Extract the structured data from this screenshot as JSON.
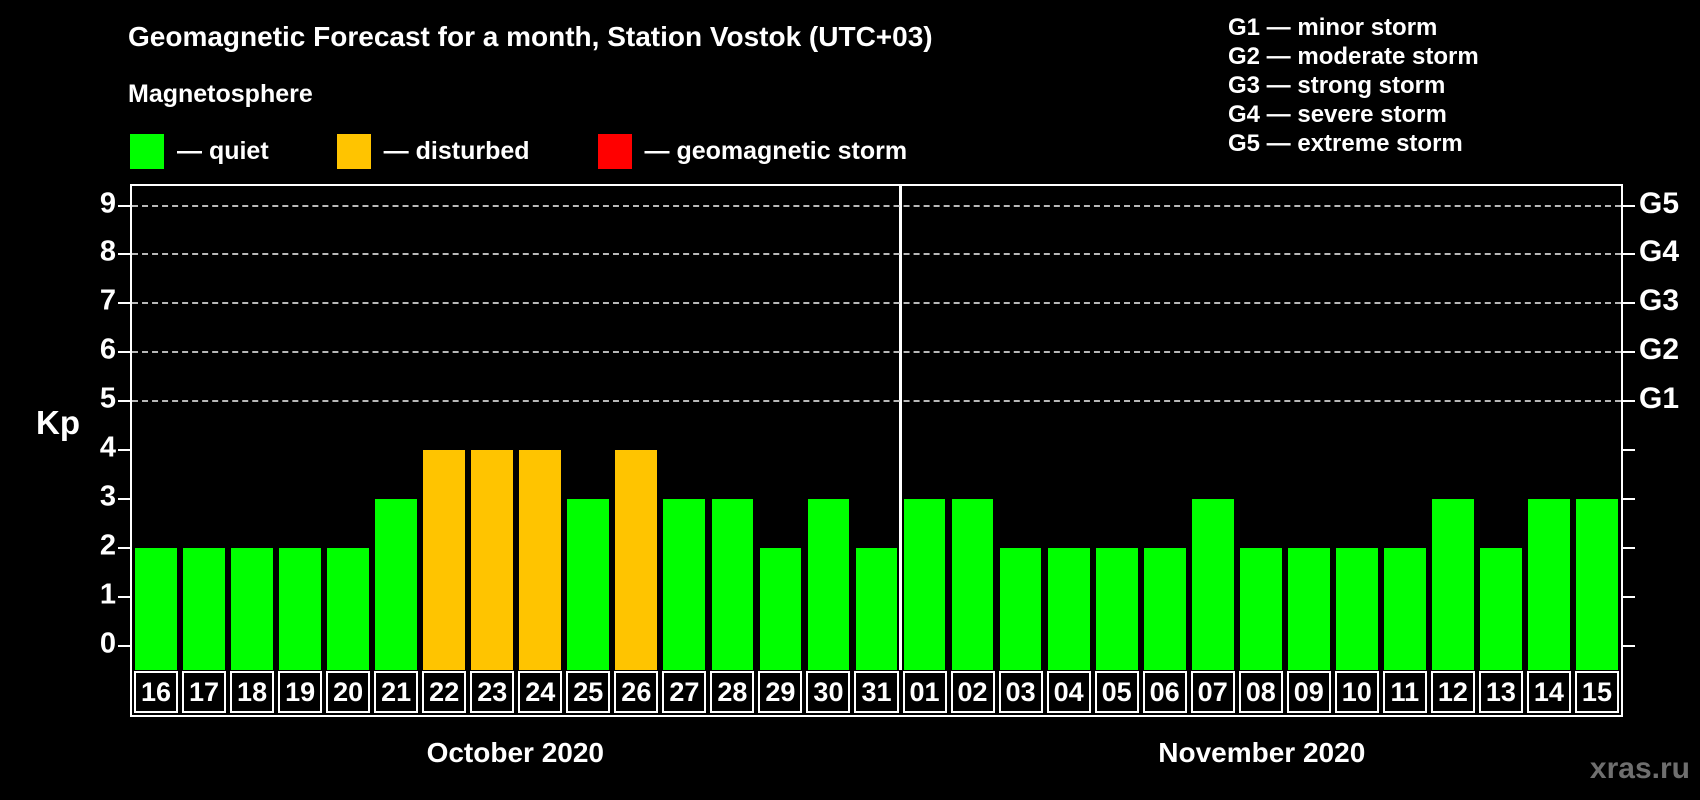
{
  "header": {
    "title": "Geomagnetic Forecast for a month, Station Vostok (UTC+03)",
    "subtitle": "Magnetosphere"
  },
  "legend": {
    "items": [
      {
        "key": "quiet",
        "label": "— quiet"
      },
      {
        "key": "disturbed",
        "label": "— disturbed"
      },
      {
        "key": "storm",
        "label": "— geomagnetic storm"
      }
    ]
  },
  "g_scale_legend": {
    "items": [
      "G1 — minor storm",
      "G2 — moderate storm",
      "G3 — strong storm",
      "G4 — severe storm",
      "G5 — extreme storm"
    ]
  },
  "watermark": "xras.ru",
  "chart_data": {
    "type": "bar",
    "title": "Geomagnetic Forecast for a month, Station Vostok (UTC+03)",
    "ylabel": "Kp",
    "ylim": [
      -0.5,
      9.4
    ],
    "y_ticks": [
      0,
      1,
      2,
      3,
      4,
      5,
      6,
      7,
      8,
      9
    ],
    "gridlines_at_kp": [
      5,
      6,
      7,
      8,
      9
    ],
    "grid": "dashed horizontal lines at storm levels only",
    "legend_position": "top-left",
    "right_axis": [
      {
        "label": "G1",
        "kp": 5
      },
      {
        "label": "G2",
        "kp": 6
      },
      {
        "label": "G3",
        "kp": 7
      },
      {
        "label": "G4",
        "kp": 8
      },
      {
        "label": "G5",
        "kp": 9
      }
    ],
    "months": [
      {
        "label": "October 2020",
        "days": [
          "16",
          "17",
          "18",
          "19",
          "20",
          "21",
          "22",
          "23",
          "24",
          "25",
          "26",
          "27",
          "28",
          "29",
          "30",
          "31"
        ],
        "kp_values": [
          2,
          2,
          2,
          2,
          2,
          3,
          4,
          4,
          4,
          3,
          4,
          3,
          3,
          2,
          3,
          2
        ],
        "states": [
          "quiet",
          "quiet",
          "quiet",
          "quiet",
          "quiet",
          "quiet",
          "disturbed",
          "disturbed",
          "disturbed",
          "quiet",
          "disturbed",
          "quiet",
          "quiet",
          "quiet",
          "quiet",
          "quiet"
        ]
      },
      {
        "label": "November 2020",
        "days": [
          "01",
          "02",
          "03",
          "04",
          "05",
          "06",
          "07",
          "08",
          "09",
          "10",
          "11",
          "12",
          "13",
          "14",
          "15"
        ],
        "kp_values": [
          3,
          3,
          2,
          2,
          2,
          2,
          3,
          2,
          2,
          2,
          2,
          3,
          2,
          3,
          3
        ],
        "states": [
          "quiet",
          "quiet",
          "quiet",
          "quiet",
          "quiet",
          "quiet",
          "quiet",
          "quiet",
          "quiet",
          "quiet",
          "quiet",
          "quiet",
          "quiet",
          "quiet",
          "quiet"
        ]
      }
    ]
  },
  "colors": {
    "background": "#000000",
    "axis": "#ffffff",
    "grid": "#b8b8b8",
    "text": "#ffffff",
    "quiet": "#00ff00",
    "disturbed": "#ffc400",
    "storm": "#ff0000",
    "watermark": "#6f6f6f"
  }
}
